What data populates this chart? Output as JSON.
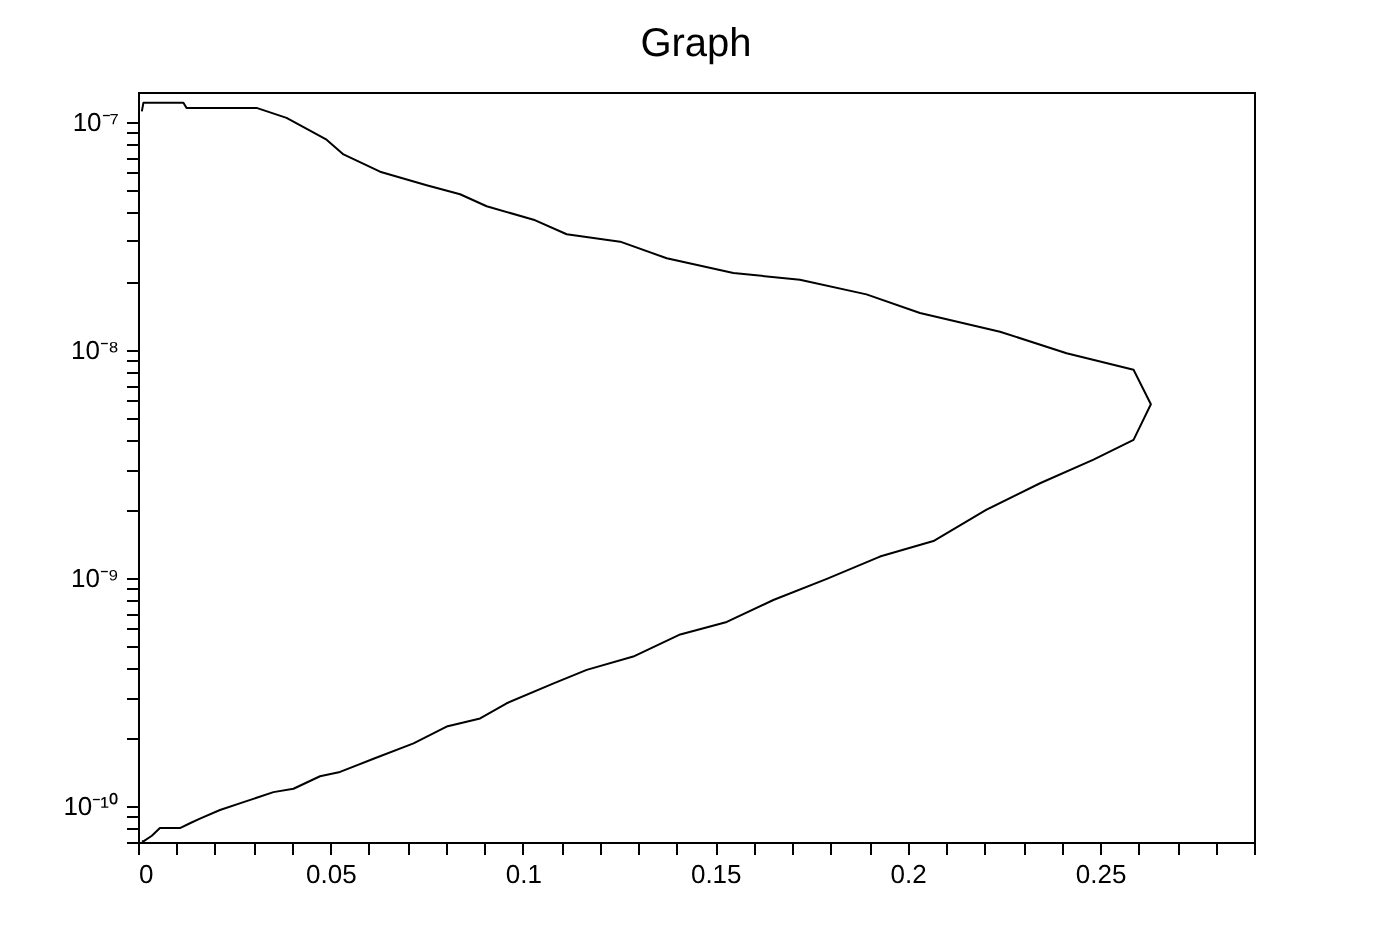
{
  "chart_data": {
    "type": "line",
    "title": "Graph",
    "series": [
      {
        "color": "#000000",
        "x": [
          0.001,
          0.0014,
          0.0036,
          0.0057,
          0.0109,
          0.0135,
          0.0161,
          0.0213,
          0.0282,
          0.0352,
          0.0404,
          0.0473,
          0.0525,
          0.0612,
          0.0716,
          0.0802,
          0.0889,
          0.0958,
          0.108,
          0.1166,
          0.1287,
          0.1409,
          0.153,
          0.1651,
          0.179,
          0.1928,
          0.2067,
          0.2205,
          0.2344,
          0.2483,
          0.2587,
          0.2632,
          0.2587,
          0.2413,
          0.224,
          0.2032,
          0.1893,
          0.172,
          0.1547,
          0.1374,
          0.1253,
          0.1114,
          0.1028,
          0.0906,
          0.0837,
          0.075,
          0.0629,
          0.0534,
          0.049,
          0.0386,
          0.0308,
          0.0126,
          0.0118,
          0.0014,
          0.001
        ],
        "values": [
          7e-11,
          7e-11,
          7.4e-11,
          8e-11,
          8e-11,
          8.4e-11,
          8.8e-11,
          9.6e-11,
          1.05e-10,
          1.15e-10,
          1.19e-10,
          1.35e-10,
          1.41e-10,
          1.61e-10,
          1.88e-10,
          2.23e-10,
          2.42e-10,
          2.82e-10,
          3.45e-10,
          3.95e-10,
          4.52e-10,
          5.65e-10,
          6.41e-10,
          8e-10,
          9.9e-10,
          1.24e-09,
          1.45e-09,
          1.99e-09,
          2.6e-09,
          3.3e-09,
          4.03e-09,
          5.77e-09,
          8.17e-09,
          9.66e-09,
          1.2e-08,
          1.45e-08,
          1.75e-08,
          2.03e-08,
          2.17e-08,
          2.52e-08,
          2.98e-08,
          3.21e-08,
          3.72e-08,
          4.26e-08,
          4.81e-08,
          5.27e-08,
          6.04e-08,
          7.19e-08,
          8.34e-08,
          1.04e-07,
          1.15e-07,
          1.15e-07,
          1.21e-07,
          1.21e-07,
          1.11e-07
        ]
      }
    ],
    "xlim": [
      0,
      0.29
    ],
    "xticks": [
      0,
      {
        "value": 0.01,
        "label": null
      },
      {
        "value": 0.02,
        "label": null
      },
      {
        "value": 0.03,
        "label": null
      },
      {
        "value": 0.04,
        "label": null
      },
      0.05,
      {
        "value": 0.06,
        "label": null
      },
      {
        "value": 0.07,
        "label": null
      },
      {
        "value": 0.08,
        "label": null
      },
      {
        "value": 0.09,
        "label": null
      },
      0.1,
      {
        "value": 0.11,
        "label": null
      },
      {
        "value": 0.12,
        "label": null
      },
      {
        "value": 0.13,
        "label": null
      },
      {
        "value": 0.14,
        "label": null
      },
      0.15,
      {
        "value": 0.16,
        "label": null
      },
      {
        "value": 0.17,
        "label": null
      },
      {
        "value": 0.18,
        "label": null
      },
      {
        "value": 0.19,
        "label": null
      },
      0.2,
      {
        "value": 0.21,
        "label": null
      },
      {
        "value": 0.22,
        "label": null
      },
      {
        "value": 0.23,
        "label": null
      },
      {
        "value": 0.24,
        "label": null
      },
      0.25,
      {
        "value": 0.26,
        "label": null
      },
      {
        "value": 0.27,
        "label": null
      },
      {
        "value": 0.28,
        "label": null
      },
      {
        "value": 0.29,
        "label": null
      }
    ],
    "ylim": [
      6.95e-11,
      1.35e-07
    ],
    "yticks": [
      {
        "value": 7e-11,
        "label": null
      },
      {
        "value": 8e-11,
        "label": null
      },
      {
        "value": 9e-11,
        "label": null
      },
      {
        "value": 1e-10,
        "label": "10⁻¹⁰"
      },
      {
        "value": 2e-10,
        "label": null
      },
      {
        "value": 3e-10,
        "label": null
      },
      {
        "value": 4e-10,
        "label": null
      },
      {
        "value": 5e-10,
        "label": null
      },
      {
        "value": 6e-10,
        "label": null
      },
      {
        "value": 7e-10,
        "label": null
      },
      {
        "value": 8e-10,
        "label": null
      },
      {
        "value": 9e-10,
        "label": null
      },
      {
        "value": 1e-09,
        "label": "10⁻⁹"
      },
      {
        "value": 2e-09,
        "label": null
      },
      {
        "value": 3e-09,
        "label": null
      },
      {
        "value": 4e-09,
        "label": null
      },
      {
        "value": 5e-09,
        "label": null
      },
      {
        "value": 6e-09,
        "label": null
      },
      {
        "value": 7e-09,
        "label": null
      },
      {
        "value": 8e-09,
        "label": null
      },
      {
        "value": 9e-09,
        "label": null
      },
      {
        "value": 1e-08,
        "label": "10⁻⁸"
      },
      {
        "value": 2e-08,
        "label": null
      },
      {
        "value": 3e-08,
        "label": null
      },
      {
        "value": 4e-08,
        "label": null
      },
      {
        "value": 5e-08,
        "label": null
      },
      {
        "value": 6e-08,
        "label": null
      },
      {
        "value": 7e-08,
        "label": null
      },
      {
        "value": 8e-08,
        "label": null
      },
      {
        "value": 9e-08,
        "label": null
      },
      {
        "value": 1e-07,
        "label": "10⁻⁷"
      }
    ],
    "log": true,
    "grid": false,
    "marker": "none",
    "line_style": "solid"
  }
}
